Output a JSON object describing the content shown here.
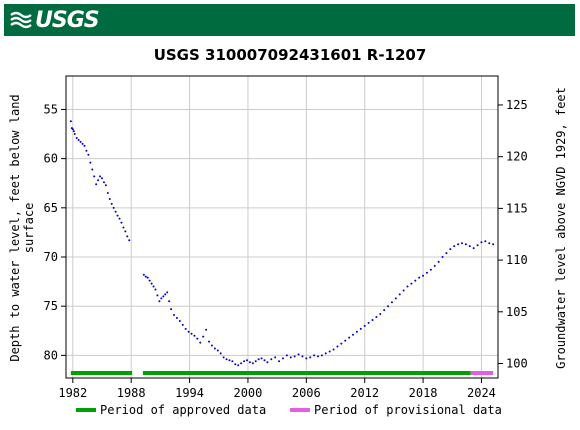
{
  "header": {
    "logo_text": "USGS",
    "logo_icon": "usgs-wave-icon",
    "brand_color": "#006b3f"
  },
  "chart_data": {
    "type": "scatter",
    "title": "USGS 310007092431601 R-1207",
    "ylabel_left": [
      "Depth to water level, feet below land",
      "surface"
    ],
    "ylabel_right": "Groundwater level above NGVD 1929, feet",
    "xlim": [
      1981.3,
      2025.7
    ],
    "ylim_left": [
      82.3,
      51.6
    ],
    "ylim_right": [
      98.6,
      127.8
    ],
    "x_ticks": [
      1982,
      1988,
      1994,
      2000,
      2006,
      2012,
      2018,
      2024
    ],
    "y_ticks_left": [
      55,
      60,
      65,
      70,
      75,
      80
    ],
    "y_ticks_right": [
      100,
      105,
      110,
      115,
      120,
      125
    ],
    "grid": true,
    "series": [
      {
        "color": "#0000cc",
        "marker": "dot",
        "x": [
          1981.8,
          1981.9,
          1982.0,
          1982.1,
          1982.2,
          1982.4,
          1982.6,
          1982.8,
          1983.0,
          1983.2,
          1983.4,
          1983.6,
          1983.8,
          1984.0,
          1984.2,
          1984.4,
          1984.6,
          1984.8,
          1985.0,
          1985.2,
          1985.4,
          1985.6,
          1985.8,
          1986.0,
          1986.2,
          1986.4,
          1986.6,
          1986.8,
          1987.0,
          1987.2,
          1987.4,
          1987.6,
          1987.8,
          1989.3,
          1989.5,
          1989.7,
          1989.9,
          1990.1,
          1990.3,
          1990.5,
          1990.7,
          1990.9,
          1991.1,
          1991.3,
          1991.5,
          1991.7,
          1991.9,
          1992.1,
          1992.4,
          1992.7,
          1993.0,
          1993.3,
          1993.6,
          1993.9,
          1994.2,
          1994.5,
          1994.8,
          1995.1,
          1995.4,
          1995.7,
          1996.0,
          1996.3,
          1996.6,
          1996.9,
          1997.2,
          1997.5,
          1997.8,
          1998.1,
          1998.4,
          1998.7,
          1999.0,
          1999.3,
          1999.6,
          1999.9,
          2000.2,
          2000.5,
          2000.8,
          2001.1,
          2001.4,
          2001.7,
          2002.0,
          2002.4,
          2002.8,
          2003.2,
          2003.6,
          2004.0,
          2004.4,
          2004.8,
          2005.2,
          2005.6,
          2006.0,
          2006.4,
          2006.8,
          2007.2,
          2007.6,
          2008.0,
          2008.4,
          2008.8,
          2009.2,
          2009.6,
          2010.0,
          2010.4,
          2010.8,
          2011.2,
          2011.6,
          2012.0,
          2012.4,
          2012.8,
          2013.2,
          2013.6,
          2014.0,
          2014.4,
          2014.8,
          2015.2,
          2015.6,
          2016.0,
          2016.4,
          2016.8,
          2017.2,
          2017.6,
          2018.0,
          2018.4,
          2018.8,
          2019.2,
          2019.6,
          2020.0,
          2020.4,
          2020.8,
          2021.2,
          2021.6,
          2022.0,
          2022.4,
          2022.8,
          2023.2,
          2023.6,
          2024.0,
          2024.4,
          2024.8,
          2025.2
        ],
        "y": [
          56.2,
          56.9,
          57.0,
          57.2,
          57.5,
          57.9,
          58.1,
          58.3,
          58.5,
          58.7,
          59.2,
          59.6,
          60.4,
          61.1,
          61.8,
          62.6,
          62.2,
          61.8,
          62.0,
          62.4,
          62.7,
          63.5,
          64.1,
          64.6,
          65.0,
          65.4,
          65.8,
          66.1,
          66.5,
          67.0,
          67.4,
          67.9,
          68.3,
          71.8,
          72.0,
          72.1,
          72.4,
          72.7,
          73.0,
          73.3,
          73.9,
          74.5,
          74.2,
          74.0,
          73.8,
          73.6,
          74.5,
          75.3,
          75.9,
          76.2,
          76.5,
          76.9,
          77.3,
          77.6,
          77.8,
          78.0,
          78.3,
          78.7,
          78.1,
          77.4,
          78.6,
          79.0,
          79.3,
          79.5,
          79.8,
          80.2,
          80.4,
          80.5,
          80.6,
          80.9,
          81.0,
          80.8,
          80.6,
          80.5,
          80.7,
          80.8,
          80.6,
          80.4,
          80.3,
          80.5,
          80.7,
          80.4,
          80.2,
          80.6,
          80.3,
          80.0,
          80.2,
          80.1,
          79.9,
          80.1,
          80.3,
          80.2,
          80.0,
          80.1,
          80.0,
          79.8,
          79.6,
          79.4,
          79.1,
          78.8,
          78.5,
          78.2,
          77.9,
          77.6,
          77.3,
          77.0,
          76.7,
          76.4,
          76.1,
          75.8,
          75.4,
          75.0,
          74.6,
          74.2,
          73.8,
          73.4,
          73.0,
          72.7,
          72.4,
          72.1,
          71.9,
          71.6,
          71.3,
          70.9,
          70.5,
          70.0,
          69.6,
          69.2,
          68.9,
          68.7,
          68.6,
          68.7,
          68.9,
          69.1,
          68.8,
          68.5,
          68.4,
          68.6,
          68.7
        ]
      }
    ],
    "legend": [
      {
        "label": "Period of approved data",
        "color": "#00a000"
      },
      {
        "label": "Period of provisional data",
        "color": "#e060e0"
      }
    ],
    "legend_position": "bottom",
    "approved_periods": [
      [
        1981.8,
        1988.1
      ],
      [
        1989.2,
        2022.9
      ]
    ],
    "provisional_periods": [
      [
        2022.9,
        2025.2
      ]
    ]
  }
}
